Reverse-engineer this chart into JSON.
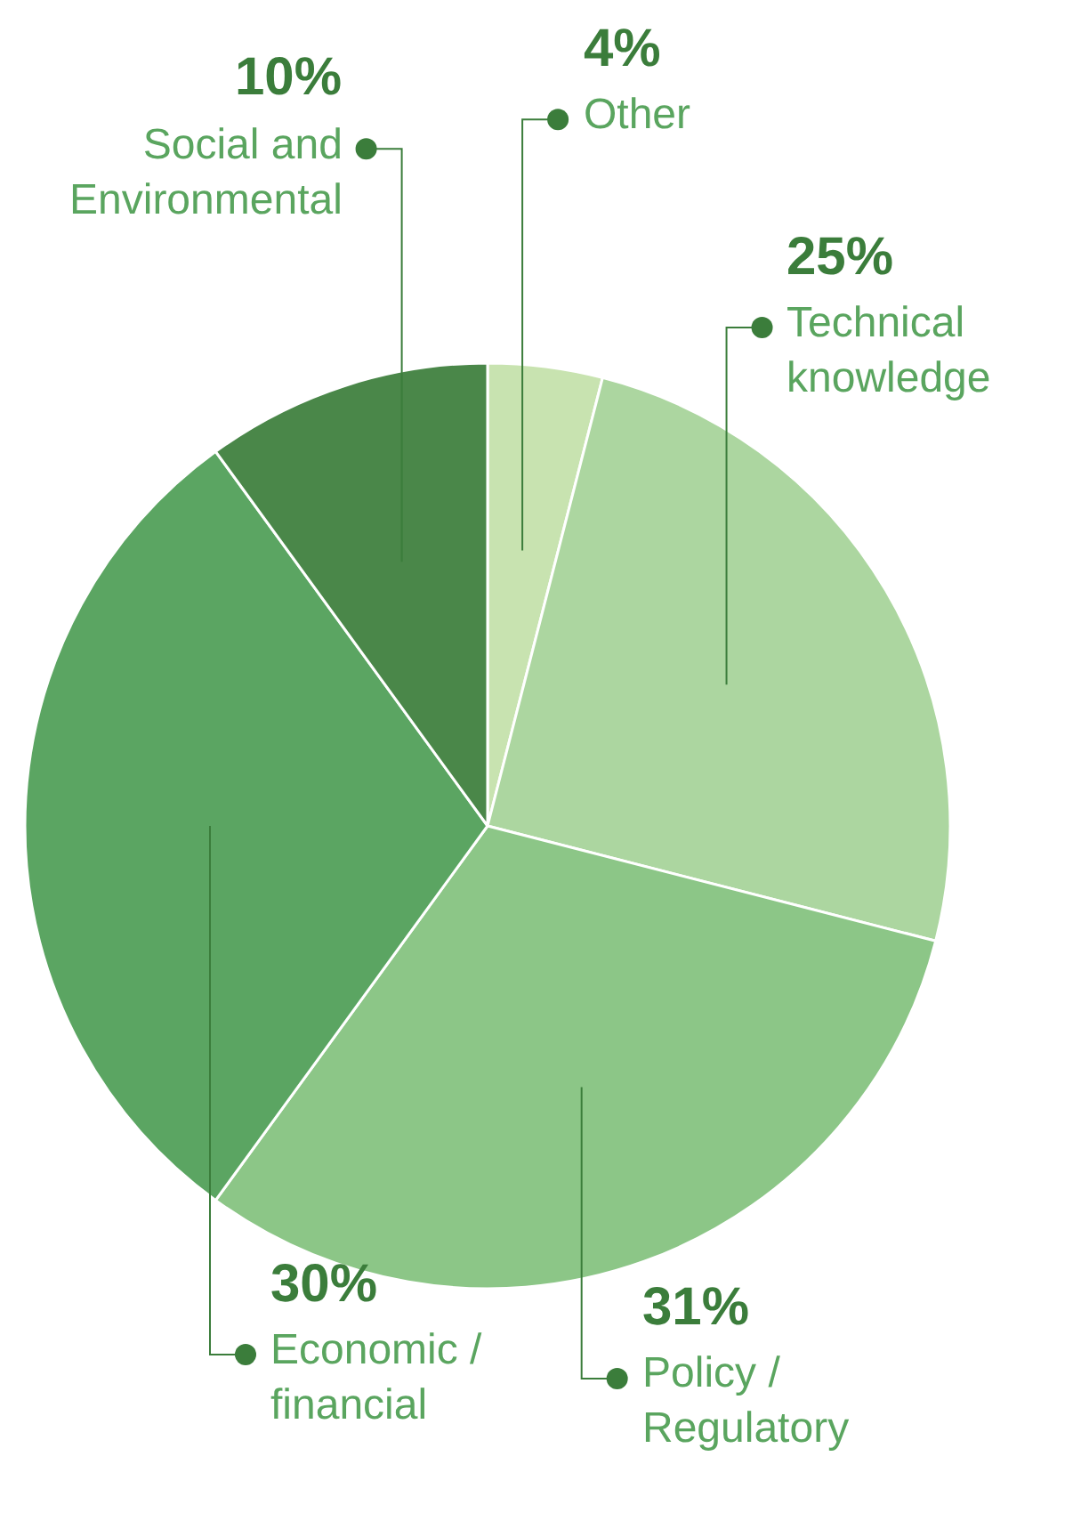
{
  "chart_data": {
    "type": "pie",
    "categories": [
      "Other",
      "Technical knowledge",
      "Policy / Regulatory",
      "Economic / financial",
      "Social and Environmental"
    ],
    "values": [
      4,
      25,
      31,
      30,
      10
    ],
    "colors": [
      "#c8e3b0",
      "#acd6a0",
      "#8cc687",
      "#5ba562",
      "#4a8749"
    ],
    "value_labels": [
      "4%",
      "25%",
      "31%",
      "30%",
      "10%"
    ]
  }
}
